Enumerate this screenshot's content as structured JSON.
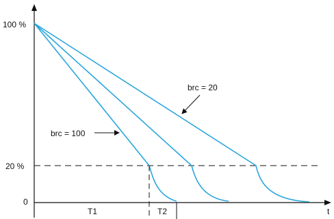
{
  "axes": {
    "y_tick_100": "100 %",
    "y_tick_20": "20 %",
    "y_tick_0": "0",
    "x_label": "t"
  },
  "annotations": {
    "brc_20": "brc = 20",
    "brc_100": "brc = 100"
  },
  "intervals": {
    "t1": "T1",
    "t2": "T2"
  },
  "colors": {
    "curve": "#2aa6dc",
    "axis": "#111111"
  }
}
